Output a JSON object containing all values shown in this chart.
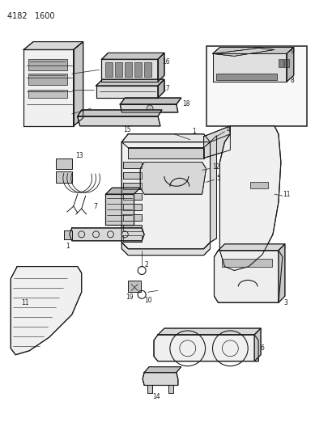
{
  "title": "4182  1600",
  "bg_color": "#ffffff",
  "line_color": "#1a1a1a",
  "fig_width": 3.89,
  "fig_height": 5.33,
  "dpi": 100
}
